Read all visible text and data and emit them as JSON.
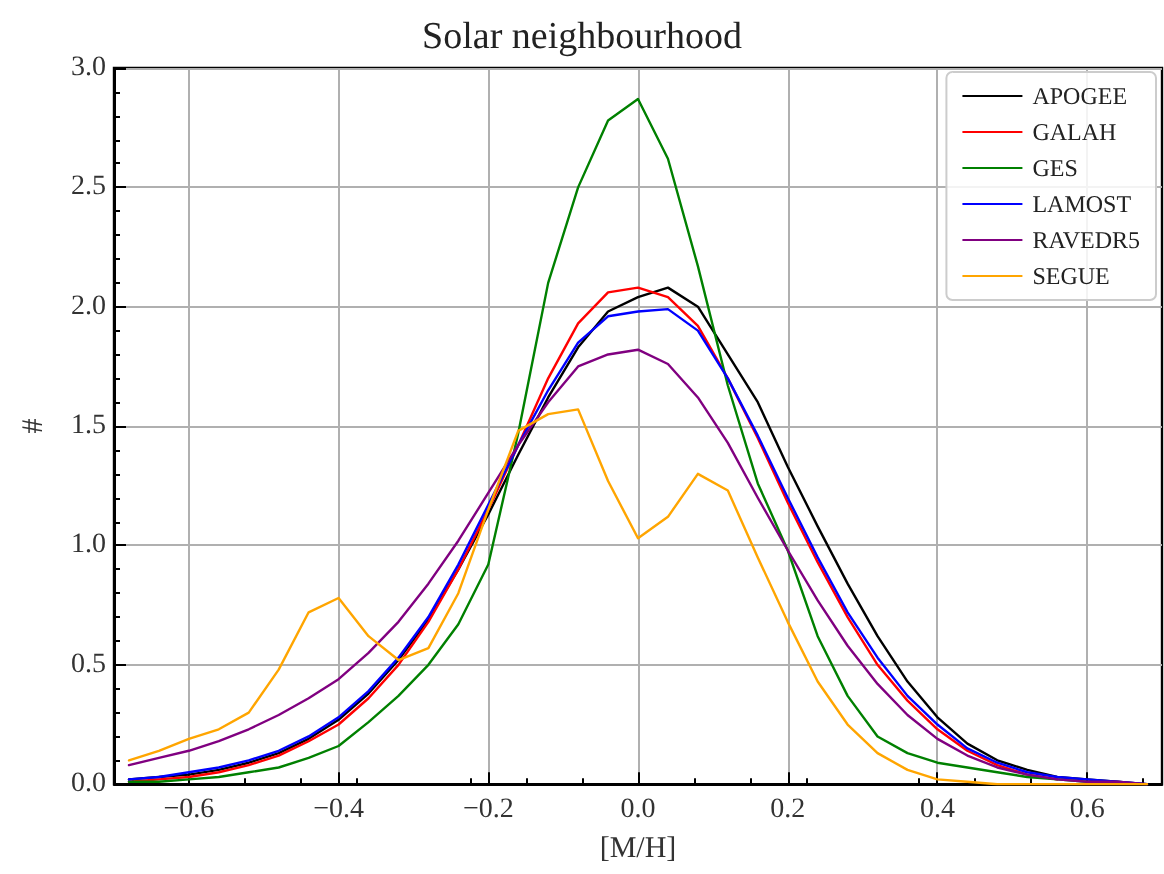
{
  "chart_data": {
    "type": "line",
    "title": "Solar neighbourhood",
    "xlabel": "[M/H]",
    "ylabel": "#",
    "x": [
      -0.68,
      -0.64,
      -0.6,
      -0.56,
      -0.52,
      -0.48,
      -0.44,
      -0.4,
      -0.36,
      -0.32,
      -0.28,
      -0.24,
      -0.2,
      -0.16,
      -0.12,
      -0.08,
      -0.04,
      0,
      0.04,
      0.08,
      0.12,
      0.16,
      0.2,
      0.24,
      0.28,
      0.32,
      0.36,
      0.4,
      0.44,
      0.48,
      0.52,
      0.56,
      0.6,
      0.64,
      0.68
    ],
    "xlim": [
      -0.7,
      0.7
    ],
    "xticks": [
      {
        "value": -0.6,
        "label": "−0.6"
      },
      {
        "value": -0.4,
        "label": "−0.4"
      },
      {
        "value": -0.2,
        "label": "−0.2"
      },
      {
        "value": 0,
        "label": "0.0"
      },
      {
        "value": 0.2,
        "label": "0.2"
      },
      {
        "value": 0.4,
        "label": "0.4"
      },
      {
        "value": 0.6,
        "label": "0.6"
      }
    ],
    "ylim": [
      0,
      3
    ],
    "yticks": [
      {
        "value": 0,
        "label": "0.0"
      },
      {
        "value": 0.5,
        "label": "0.5"
      },
      {
        "value": 1,
        "label": "1.0"
      },
      {
        "value": 1.5,
        "label": "1.5"
      },
      {
        "value": 2,
        "label": "2.0"
      },
      {
        "value": 2.5,
        "label": "2.5"
      },
      {
        "value": 3,
        "label": "3.0"
      }
    ],
    "grid": true,
    "legend": "top right",
    "marker": "none",
    "line_style": "solid",
    "series": [
      {
        "name": "APOGEE",
        "color": "#000000",
        "values": [
          0.02,
          0.03,
          0.04,
          0.06,
          0.09,
          0.13,
          0.19,
          0.27,
          0.38,
          0.52,
          0.69,
          0.9,
          1.13,
          1.38,
          1.62,
          1.83,
          1.98,
          2.04,
          2.08,
          2.0,
          1.8,
          1.6,
          1.33,
          1.08,
          0.84,
          0.62,
          0.43,
          0.28,
          0.17,
          0.1,
          0.06,
          0.03,
          0.02,
          0.01,
          0
        ]
      },
      {
        "name": "GALAH",
        "color": "#ff0000",
        "values": [
          0.01,
          0.02,
          0.03,
          0.05,
          0.08,
          0.12,
          0.18,
          0.25,
          0.36,
          0.5,
          0.68,
          0.9,
          1.15,
          1.42,
          1.7,
          1.93,
          2.06,
          2.08,
          2.04,
          1.92,
          1.7,
          1.45,
          1.18,
          0.93,
          0.7,
          0.5,
          0.35,
          0.23,
          0.14,
          0.08,
          0.04,
          0.02,
          null,
          null,
          null
        ]
      },
      {
        "name": "GES",
        "color": "#008000",
        "values": [
          0.01,
          0.01,
          0.02,
          0.03,
          0.05,
          0.07,
          0.11,
          0.16,
          0.26,
          0.37,
          0.5,
          0.67,
          0.92,
          1.47,
          2.1,
          2.5,
          2.78,
          2.87,
          2.62,
          2.17,
          1.67,
          1.26,
          0.98,
          0.62,
          0.37,
          0.2,
          0.13,
          0.09,
          0.07,
          0.05,
          0.03,
          0.02,
          0.01,
          null,
          null
        ]
      },
      {
        "name": "LAMOST",
        "color": "#0000ff",
        "values": [
          0.02,
          0.03,
          0.05,
          0.07,
          0.1,
          0.14,
          0.2,
          0.28,
          0.39,
          0.53,
          0.7,
          0.92,
          1.17,
          1.42,
          1.65,
          1.85,
          1.96,
          1.98,
          1.99,
          1.9,
          1.7,
          1.46,
          1.2,
          0.95,
          0.72,
          0.53,
          0.37,
          0.25,
          0.15,
          0.09,
          0.05,
          0.03,
          0.02,
          0.01,
          0
        ]
      },
      {
        "name": "RAVEDR5",
        "color": "#800080",
        "values": [
          0.08,
          0.11,
          0.14,
          0.18,
          0.23,
          0.29,
          0.36,
          0.44,
          0.55,
          0.68,
          0.84,
          1.02,
          1.22,
          1.42,
          1.6,
          1.75,
          1.8,
          1.82,
          1.76,
          1.62,
          1.43,
          1.2,
          0.98,
          0.77,
          0.58,
          0.42,
          0.29,
          0.19,
          0.12,
          0.07,
          0.04,
          0.02,
          0.01,
          0.01,
          0
        ]
      },
      {
        "name": "SEGUE",
        "color": "#ffa500",
        "values": [
          0.1,
          0.14,
          0.19,
          0.23,
          0.3,
          0.48,
          0.72,
          0.78,
          0.62,
          0.52,
          0.57,
          0.8,
          1.15,
          1.48,
          1.55,
          1.57,
          1.27,
          1.03,
          1.12,
          1.3,
          1.23,
          0.95,
          0.68,
          0.43,
          0.25,
          0.13,
          0.06,
          0.02,
          0.01,
          0,
          0,
          0,
          0,
          0,
          0
        ]
      }
    ]
  }
}
